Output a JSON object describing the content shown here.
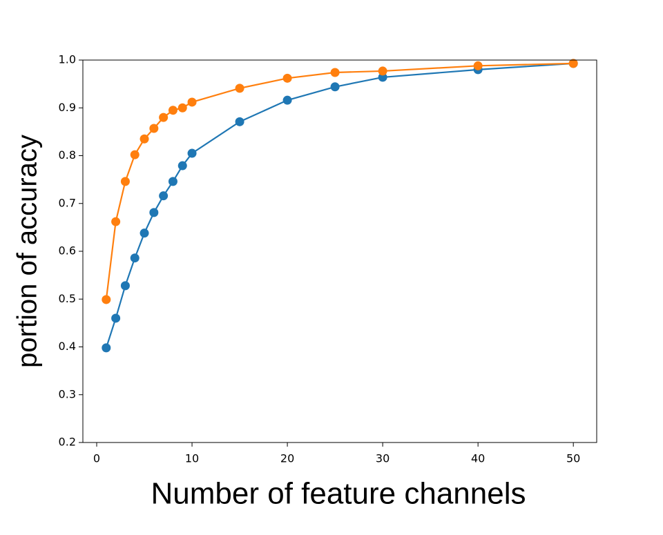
{
  "chart_data": {
    "type": "line",
    "x_label": "Number of feature channels",
    "y_label": "portion of accuracy",
    "x": [
      1,
      2,
      3,
      4,
      5,
      6,
      7,
      8,
      9,
      10,
      15,
      20,
      25,
      30,
      40,
      50
    ],
    "series": [
      {
        "color": "#1f77b4",
        "values": [
          0.398,
          0.46,
          0.528,
          0.586,
          0.638,
          0.681,
          0.716,
          0.746,
          0.779,
          0.805,
          0.871,
          0.916,
          0.944,
          0.964,
          0.98,
          0.993
        ]
      },
      {
        "color": "#ff7f0e",
        "values": [
          0.499,
          0.662,
          0.746,
          0.802,
          0.835,
          0.857,
          0.88,
          0.895,
          0.9,
          0.912,
          0.941,
          0.962,
          0.974,
          0.977,
          0.988,
          0.993
        ]
      }
    ],
    "xlim": [
      -1.45,
      52.45
    ],
    "ylim": [
      0.2,
      1.0
    ],
    "xticks": [
      0,
      10,
      20,
      30,
      40,
      50
    ],
    "yticks": [
      0.2,
      0.3,
      0.4,
      0.5,
      0.6,
      0.7,
      0.8,
      0.9,
      {
        "value": 1,
        "label": "1.0"
      }
    ],
    "grid": false
  }
}
